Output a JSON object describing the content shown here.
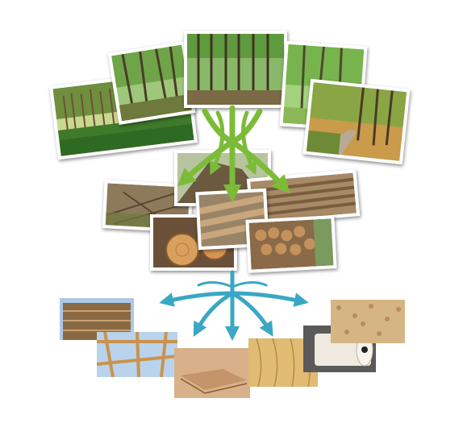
{
  "stages": [
    {
      "name": "forest",
      "arrow_color": "#7cbb38"
    },
    {
      "name": "harvested-timber",
      "arrow_color": "#3aa7c4"
    },
    {
      "name": "wood-products"
    }
  ],
  "palette": {
    "forest_green": "#4e7a2a",
    "trunk": "#5b4a33",
    "log_face": "#d9a05d",
    "plywood": "#d8b08a",
    "sky": "#aac9e8"
  }
}
